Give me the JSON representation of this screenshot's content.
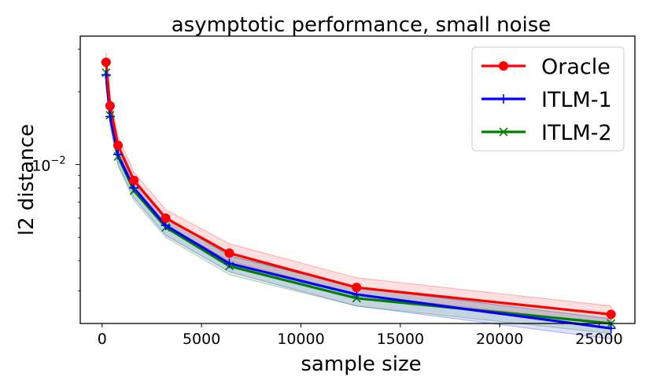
{
  "chart_data": {
    "type": "line",
    "title": "asymptotic performance, small noise",
    "xlabel": "sample size",
    "ylabel": "l2 distance",
    "xlim": [
      -1100,
      26800
    ],
    "ylim": [
      0.0022,
      0.034
    ],
    "yscale": "log",
    "x_ticks": [
      {
        "value": 0,
        "label": "0"
      },
      {
        "value": 5000,
        "label": "5000"
      },
      {
        "value": 10000,
        "label": "10000"
      },
      {
        "value": 15000,
        "label": "15000"
      },
      {
        "value": 20000,
        "label": "20000"
      },
      {
        "value": 25000,
        "label": "25000"
      }
    ],
    "y_ticks": [
      {
        "value": 0.01,
        "base": "10",
        "exponent": "−2"
      }
    ],
    "legend_position": "top-right",
    "x": [
      200,
      400,
      800,
      1600,
      3200,
      6400,
      12800,
      25600
    ],
    "series": [
      {
        "name": "Oracle",
        "color": "#ff0000",
        "marker": "circle",
        "values": [
          0.0265,
          0.0175,
          0.012,
          0.0086,
          0.006,
          0.0043,
          0.0031,
          0.0024
        ],
        "band_lower": [
          0.0245,
          0.0162,
          0.0111,
          0.008,
          0.0056,
          0.004,
          0.0029,
          0.0022
        ],
        "band_upper": [
          0.029,
          0.019,
          0.0131,
          0.0093,
          0.0065,
          0.0047,
          0.0034,
          0.0026
        ]
      },
      {
        "name": "ITLM-1",
        "color": "#0000ff",
        "marker": "plus",
        "values": [
          0.0235,
          0.0158,
          0.011,
          0.008,
          0.0056,
          0.0039,
          0.0029,
          0.0021
        ],
        "band_lower": [
          0.0215,
          0.0146,
          0.01,
          0.0073,
          0.0051,
          0.0036,
          0.0026,
          0.0019
        ],
        "band_upper": [
          0.0258,
          0.0172,
          0.012,
          0.0087,
          0.0061,
          0.0042,
          0.0031,
          0.0023
        ]
      },
      {
        "name": "ITLM-2",
        "color": "#008000",
        "marker": "x",
        "values": [
          0.024,
          0.016,
          0.0108,
          0.0078,
          0.0055,
          0.0038,
          0.0028,
          0.0022
        ],
        "band_lower": [
          0.022,
          0.0148,
          0.0099,
          0.0071,
          0.005,
          0.0035,
          0.0026,
          0.002
        ],
        "band_upper": [
          0.0262,
          0.0173,
          0.0118,
          0.0085,
          0.006,
          0.0042,
          0.0031,
          0.0024
        ]
      }
    ]
  }
}
